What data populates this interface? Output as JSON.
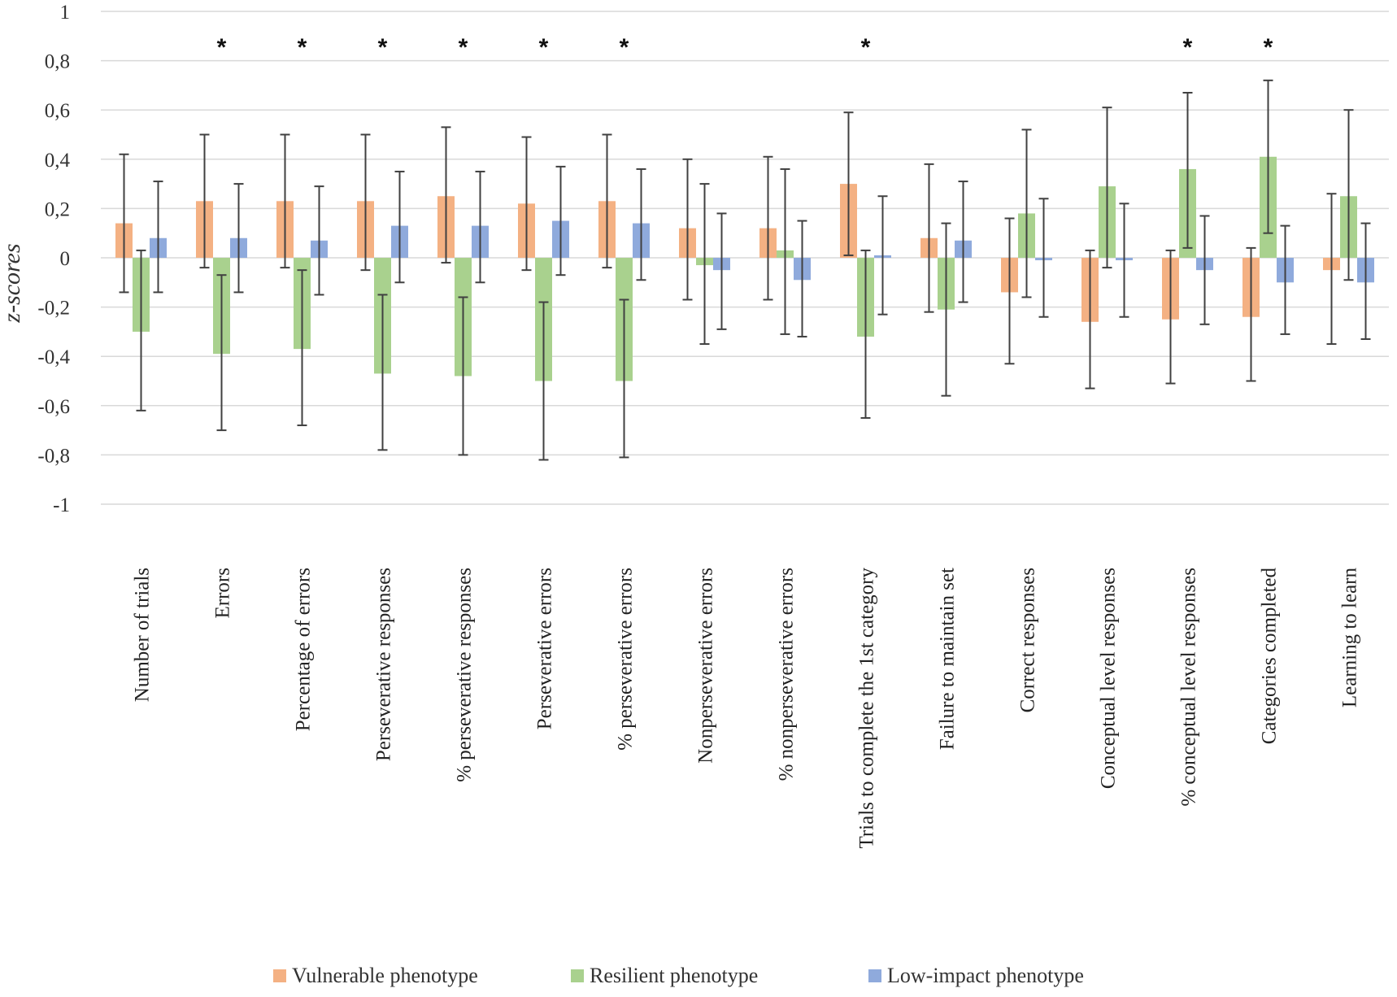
{
  "chart_data": {
    "type": "bar",
    "title": "",
    "xlabel": "",
    "ylabel": "z-scores",
    "ylim": [
      -1,
      1
    ],
    "yticks": [
      1,
      0.8,
      0.6,
      0.4,
      0.2,
      0,
      -0.2,
      -0.4,
      -0.6,
      -0.8,
      -1
    ],
    "ytick_labels": [
      "1",
      "0,8",
      "0,6",
      "0,4",
      "0,2",
      "0",
      "-0,2",
      "-0,4",
      "-0,6",
      "-0,8",
      "-1"
    ],
    "grid": true,
    "legend_position": "bottom",
    "significance_marker": "*",
    "categories": [
      "Number of trials",
      "Errors",
      "Percentage of errors",
      "Perseverative responses",
      "% perseverative responses",
      "Perseverative errors",
      "% perseverative errors",
      "Nonperseverative errors",
      "% nonperseverative errors",
      "Trials to complete the 1st category",
      "Failure to maintain set",
      "Correct responses",
      "Conceptual level responses",
      "% conceptual level responses",
      "Categories completed",
      "Learning to learn"
    ],
    "significant": [
      false,
      true,
      true,
      true,
      true,
      true,
      true,
      false,
      false,
      true,
      false,
      false,
      false,
      true,
      true,
      false
    ],
    "series": [
      {
        "name": "Vulnerable phenotype",
        "color": "#F4B183",
        "values": [
          0.14,
          0.23,
          0.23,
          0.23,
          0.25,
          0.22,
          0.23,
          0.12,
          0.12,
          0.3,
          0.08,
          -0.14,
          -0.26,
          -0.25,
          -0.24,
          -0.05
        ],
        "err_low": [
          -0.14,
          -0.04,
          -0.04,
          -0.05,
          -0.02,
          -0.05,
          -0.04,
          -0.17,
          -0.17,
          0.01,
          -0.22,
          -0.43,
          -0.53,
          -0.51,
          -0.5,
          -0.35
        ],
        "err_high": [
          0.42,
          0.5,
          0.5,
          0.5,
          0.53,
          0.49,
          0.5,
          0.4,
          0.41,
          0.59,
          0.38,
          0.16,
          0.03,
          0.03,
          0.04,
          0.26
        ]
      },
      {
        "name": "Resilient phenotype",
        "color": "#A9D18E",
        "values": [
          -0.3,
          -0.39,
          -0.37,
          -0.47,
          -0.48,
          -0.5,
          -0.5,
          -0.03,
          0.03,
          -0.32,
          -0.21,
          0.18,
          0.29,
          0.36,
          0.41,
          0.25
        ],
        "err_low": [
          -0.62,
          -0.7,
          -0.68,
          -0.78,
          -0.8,
          -0.82,
          -0.81,
          -0.35,
          -0.31,
          -0.65,
          -0.56,
          -0.16,
          -0.04,
          0.04,
          0.1,
          -0.09
        ],
        "err_high": [
          0.03,
          -0.07,
          -0.05,
          -0.15,
          -0.16,
          -0.18,
          -0.17,
          0.3,
          0.36,
          0.03,
          0.14,
          0.52,
          0.61,
          0.67,
          0.72,
          0.6
        ]
      },
      {
        "name": "Low-impact phenotype",
        "color": "#8FAADC",
        "values": [
          0.08,
          0.08,
          0.07,
          0.13,
          0.13,
          0.15,
          0.14,
          -0.05,
          -0.09,
          0.01,
          0.07,
          -0.01,
          -0.01,
          -0.05,
          -0.1,
          -0.1
        ],
        "err_low": [
          -0.14,
          -0.14,
          -0.15,
          -0.1,
          -0.1,
          -0.07,
          -0.09,
          -0.29,
          -0.32,
          -0.23,
          -0.18,
          -0.24,
          -0.24,
          -0.27,
          -0.31,
          -0.33
        ],
        "err_high": [
          0.31,
          0.3,
          0.29,
          0.35,
          0.35,
          0.37,
          0.36,
          0.18,
          0.15,
          0.25,
          0.31,
          0.24,
          0.22,
          0.17,
          0.13,
          0.14
        ]
      }
    ]
  }
}
